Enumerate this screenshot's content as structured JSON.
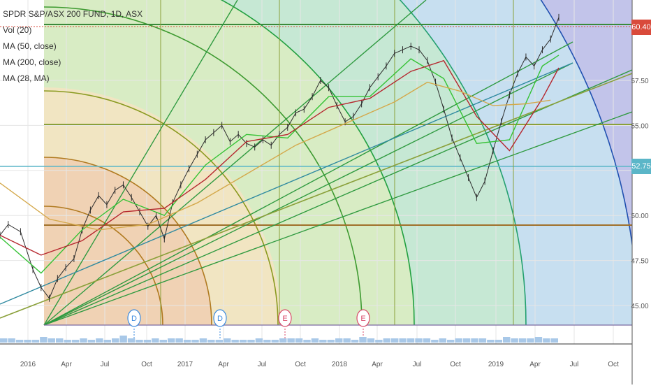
{
  "chart_data": {
    "type": "line",
    "title": "SPDR S&P/ASX 200 FUND, 1D, ASX",
    "legend": [
      {
        "name": "Vol (20)"
      },
      {
        "name": "MA (50, close)"
      },
      {
        "name": "MA (200, close)"
      },
      {
        "name": "MA (28, MA)"
      }
    ],
    "x_ticks": [
      "2016",
      "Apr",
      "Jul",
      "Oct",
      "2017",
      "Apr",
      "Jul",
      "Oct",
      "2018",
      "Apr",
      "Jul",
      "Oct",
      "2019",
      "Apr",
      "Jul",
      "Oct"
    ],
    "y_ticks": [
      "45.00",
      "47.50",
      "50.00",
      "52.50",
      "55.00",
      "57.50"
    ],
    "price_tags": [
      {
        "value": "60.40",
        "color": "#d94a3b"
      },
      {
        "value": "52.75",
        "color": "#5bb6c8"
      }
    ],
    "events": [
      "D",
      "D",
      "E",
      "E"
    ],
    "ylim": [
      44,
      61.5
    ],
    "grid": true,
    "series": [
      {
        "name": "price",
        "color": "#2b2b2b",
        "values": [
          [
            0,
            48.9
          ],
          [
            2,
            49.5
          ],
          [
            5,
            49.1
          ],
          [
            8,
            47.0
          ],
          [
            10,
            46.0
          ],
          [
            12,
            45.4
          ],
          [
            14,
            46.5
          ],
          [
            16,
            47.1
          ],
          [
            18,
            47.6
          ],
          [
            20,
            49.2
          ],
          [
            22,
            50.3
          ],
          [
            24,
            51.1
          ],
          [
            26,
            50.6
          ],
          [
            28,
            51.4
          ],
          [
            30,
            51.7
          ],
          [
            32,
            51.0
          ],
          [
            34,
            50.2
          ],
          [
            36,
            49.4
          ],
          [
            38,
            50.0
          ],
          [
            40,
            48.7
          ],
          [
            42,
            50.7
          ],
          [
            44,
            51.7
          ],
          [
            46,
            52.6
          ],
          [
            48,
            53.4
          ],
          [
            50,
            54.2
          ],
          [
            52,
            54.6
          ],
          [
            54,
            55.0
          ],
          [
            56,
            54.1
          ],
          [
            58,
            54.5
          ],
          [
            60,
            54.0
          ],
          [
            62,
            53.8
          ],
          [
            64,
            54.2
          ],
          [
            66,
            53.9
          ],
          [
            68,
            54.5
          ],
          [
            70,
            54.9
          ],
          [
            72,
            55.7
          ],
          [
            74,
            55.9
          ],
          [
            76,
            56.6
          ],
          [
            78,
            57.5
          ],
          [
            80,
            57.1
          ],
          [
            82,
            56.1
          ],
          [
            84,
            55.2
          ],
          [
            86,
            55.5
          ],
          [
            88,
            56.2
          ],
          [
            90,
            57.1
          ],
          [
            92,
            57.7
          ],
          [
            94,
            58.3
          ],
          [
            96,
            59.0
          ],
          [
            98,
            59.2
          ],
          [
            100,
            59.4
          ],
          [
            102,
            59.2
          ],
          [
            104,
            58.6
          ],
          [
            106,
            57.4
          ],
          [
            108,
            55.9
          ],
          [
            110,
            54.3
          ],
          [
            112,
            53.2
          ],
          [
            114,
            52.1
          ],
          [
            116,
            51.0
          ],
          [
            118,
            51.9
          ],
          [
            120,
            53.6
          ],
          [
            122,
            55.2
          ],
          [
            124,
            56.7
          ],
          [
            126,
            57.9
          ],
          [
            128,
            58.8
          ],
          [
            130,
            58.3
          ],
          [
            132,
            59.2
          ],
          [
            134,
            59.8
          ],
          [
            136,
            61.0
          ]
        ]
      },
      {
        "name": "MA (50, close)",
        "color": "#35c235",
        "values": [
          [
            0,
            48.8
          ],
          [
            10,
            46.8
          ],
          [
            20,
            49.2
          ],
          [
            30,
            50.9
          ],
          [
            40,
            50.0
          ],
          [
            50,
            52.8
          ],
          [
            60,
            54.5
          ],
          [
            70,
            54.3
          ],
          [
            80,
            56.6
          ],
          [
            90,
            56.6
          ],
          [
            100,
            58.7
          ],
          [
            108,
            57.6
          ],
          [
            116,
            54.0
          ],
          [
            124,
            54.2
          ],
          [
            132,
            58.3
          ],
          [
            136,
            58.9
          ]
        ]
      },
      {
        "name": "MA (28, MA)",
        "color": "#b5262e",
        "values": [
          [
            0,
            48.9
          ],
          [
            10,
            47.8
          ],
          [
            20,
            48.6
          ],
          [
            30,
            50.2
          ],
          [
            40,
            50.4
          ],
          [
            50,
            52.0
          ],
          [
            60,
            54.1
          ],
          [
            70,
            54.5
          ],
          [
            80,
            56.0
          ],
          [
            90,
            56.5
          ],
          [
            100,
            58.0
          ],
          [
            108,
            58.6
          ],
          [
            116,
            55.5
          ],
          [
            124,
            53.6
          ],
          [
            132,
            56.5
          ],
          [
            136,
            58.2
          ]
        ]
      },
      {
        "name": "MA (200, close)",
        "color": "#d4a84a",
        "values": [
          [
            0,
            51.8
          ],
          [
            12,
            49.8
          ],
          [
            24,
            49.2
          ],
          [
            36,
            49.5
          ],
          [
            48,
            50.7
          ],
          [
            60,
            52.3
          ],
          [
            72,
            53.9
          ],
          [
            84,
            55.1
          ],
          [
            96,
            56.3
          ],
          [
            104,
            57.4
          ],
          [
            112,
            56.9
          ],
          [
            120,
            56.1
          ],
          [
            128,
            56.2
          ],
          [
            134,
            56.4
          ]
        ]
      }
    ],
    "volume": [
      3,
      3,
      2,
      2,
      2,
      4,
      3,
      3,
      2,
      2,
      3,
      2,
      3,
      2,
      3,
      5,
      3,
      2,
      2,
      3,
      2,
      3,
      3,
      2,
      2,
      3,
      2,
      2,
      3,
      2,
      2,
      2,
      3,
      2,
      2,
      3,
      3,
      3,
      2,
      3,
      2,
      2,
      3,
      3,
      2,
      4,
      3,
      2,
      3,
      3,
      3,
      3,
      3,
      3,
      2,
      3,
      2,
      3,
      3,
      3,
      3,
      2,
      2,
      4,
      3,
      3,
      3,
      4,
      3,
      3
    ]
  }
}
